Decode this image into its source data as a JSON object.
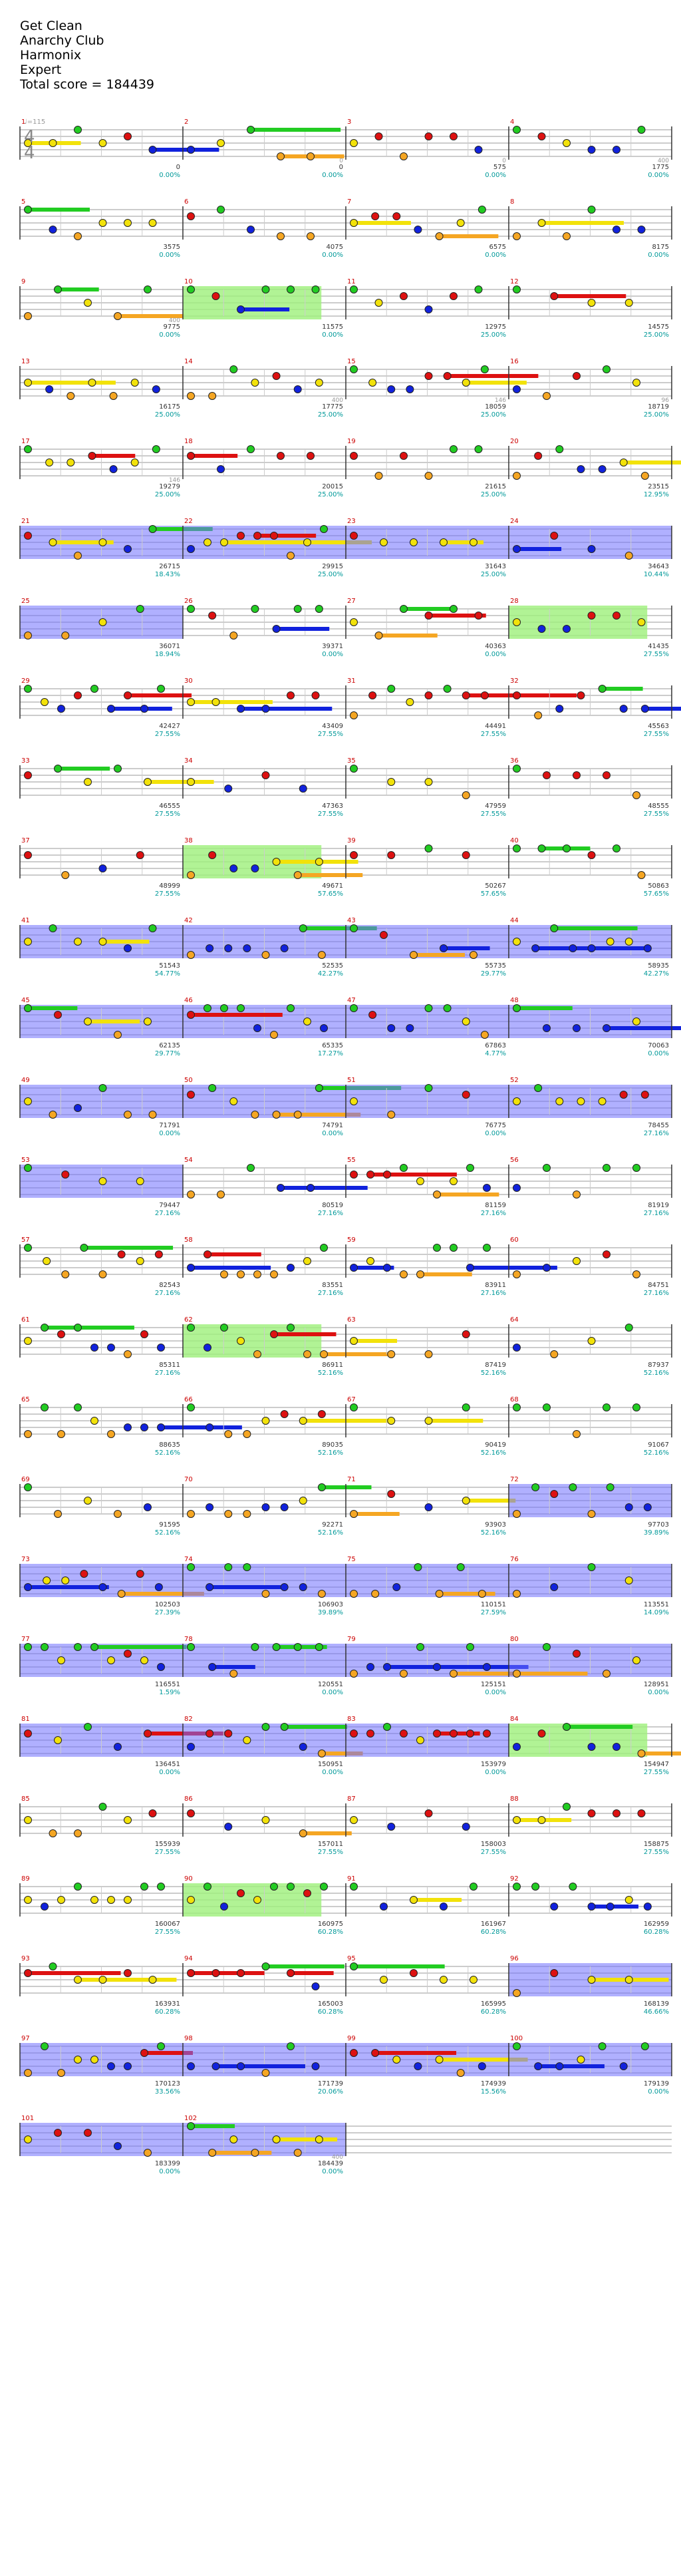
{
  "song": {
    "title": "Get Clean",
    "artist": "Anarchy Club",
    "charter": "Harmonix",
    "difficulty": "Expert",
    "total_score_label": "Total score = 184439"
  },
  "chart_header": {
    "tempo_label": "♩=115",
    "time_signature_top": "4",
    "time_signature_bottom": "4"
  },
  "colors": {
    "green": "#22cc22",
    "red": "#dd1111",
    "yellow": "#f2e20a",
    "blue": "#1122dd",
    "orange": "#f5a623",
    "starpower": "#7070ff",
    "solo": "#9ef07a",
    "percent": "#009999"
  },
  "measures": [
    {
      "n": "1",
      "prev": "",
      "score": "0",
      "pct": "0.00%"
    },
    {
      "n": "2",
      "prev": "0",
      "score": "0",
      "pct": "0.00%"
    },
    {
      "n": "3",
      "prev": "0",
      "score": "575",
      "pct": "0.00%"
    },
    {
      "n": "4",
      "prev": "400",
      "score": "1775",
      "pct": "0.00%"
    },
    {
      "n": "5",
      "prev": "",
      "score": "3575",
      "pct": "0.00%"
    },
    {
      "n": "6",
      "prev": "",
      "score": "4075",
      "pct": "0.00%"
    },
    {
      "n": "7",
      "prev": "",
      "score": "6575",
      "pct": "0.00%"
    },
    {
      "n": "8",
      "prev": "",
      "score": "8175",
      "pct": "0.00%"
    },
    {
      "n": "9",
      "prev": "400",
      "score": "9775",
      "pct": "0.00%"
    },
    {
      "n": "10",
      "prev": "",
      "score": "11575",
      "pct": "0.00%"
    },
    {
      "n": "11",
      "prev": "",
      "score": "12975",
      "pct": "25.00%"
    },
    {
      "n": "12",
      "prev": "",
      "score": "14575",
      "pct": "25.00%"
    },
    {
      "n": "13",
      "prev": "",
      "score": "16175",
      "pct": "25.00%"
    },
    {
      "n": "14",
      "prev": "400",
      "score": "17775",
      "pct": "25.00%"
    },
    {
      "n": "15",
      "prev": "146",
      "score": "18059",
      "pct": "25.00%"
    },
    {
      "n": "16",
      "prev": "96",
      "score": "18719",
      "pct": "25.00%"
    },
    {
      "n": "17",
      "prev": "146",
      "score": "19279",
      "pct": "25.00%"
    },
    {
      "n": "18",
      "prev": "",
      "score": "20015",
      "pct": "25.00%"
    },
    {
      "n": "19",
      "prev": "",
      "score": "21615",
      "pct": "25.00%"
    },
    {
      "n": "20",
      "prev": "",
      "score": "23515",
      "pct": "12.95%"
    },
    {
      "n": "21",
      "prev": "",
      "score": "26715",
      "pct": "18.43%"
    },
    {
      "n": "22",
      "prev": "",
      "score": "29915",
      "pct": "25.00%"
    },
    {
      "n": "23",
      "prev": "",
      "score": "31643",
      "pct": "25.00%"
    },
    {
      "n": "24",
      "prev": "",
      "score": "34643",
      "pct": "10.44%"
    },
    {
      "n": "25",
      "prev": "",
      "score": "36071",
      "pct": "18.94%"
    },
    {
      "n": "26",
      "prev": "",
      "score": "39371",
      "pct": "0.00%"
    },
    {
      "n": "27",
      "prev": "",
      "score": "40363",
      "pct": "0.00%"
    },
    {
      "n": "28",
      "prev": "",
      "score": "41435",
      "pct": "27.55%"
    },
    {
      "n": "29",
      "prev": "",
      "score": "42427",
      "pct": "27.55%"
    },
    {
      "n": "30",
      "prev": "",
      "score": "43409",
      "pct": "27.55%"
    },
    {
      "n": "31",
      "prev": "",
      "score": "44491",
      "pct": "27.55%"
    },
    {
      "n": "32",
      "prev": "",
      "score": "45563",
      "pct": "27.55%"
    },
    {
      "n": "33",
      "prev": "",
      "score": "46555",
      "pct": "27.55%"
    },
    {
      "n": "34",
      "prev": "",
      "score": "47363",
      "pct": "27.55%"
    },
    {
      "n": "35",
      "prev": "",
      "score": "47959",
      "pct": "27.55%"
    },
    {
      "n": "36",
      "prev": "",
      "score": "48555",
      "pct": "27.55%"
    },
    {
      "n": "37",
      "prev": "",
      "score": "48999",
      "pct": "27.55%"
    },
    {
      "n": "38",
      "prev": "",
      "score": "49671",
      "pct": "57.65%"
    },
    {
      "n": "39",
      "prev": "",
      "score": "50267",
      "pct": "57.65%"
    },
    {
      "n": "40",
      "prev": "",
      "score": "50863",
      "pct": "57.65%"
    },
    {
      "n": "41",
      "prev": "",
      "score": "51543",
      "pct": "54.77%"
    },
    {
      "n": "42",
      "prev": "",
      "score": "52535",
      "pct": "42.27%"
    },
    {
      "n": "43",
      "prev": "",
      "score": "55735",
      "pct": "29.77%"
    },
    {
      "n": "44",
      "prev": "",
      "score": "58935",
      "pct": "42.27%"
    },
    {
      "n": "45",
      "prev": "",
      "score": "62135",
      "pct": "29.77%"
    },
    {
      "n": "46",
      "prev": "",
      "score": "65335",
      "pct": "17.27%"
    },
    {
      "n": "47",
      "prev": "",
      "score": "67863",
      "pct": "4.77%"
    },
    {
      "n": "48",
      "prev": "",
      "score": "70063",
      "pct": "0.00%"
    },
    {
      "n": "49",
      "prev": "",
      "score": "71791",
      "pct": "0.00%"
    },
    {
      "n": "50",
      "prev": "",
      "score": "74791",
      "pct": "0.00%"
    },
    {
      "n": "51",
      "prev": "",
      "score": "76775",
      "pct": "0.00%"
    },
    {
      "n": "52",
      "prev": "",
      "score": "78455",
      "pct": "27.16%"
    },
    {
      "n": "53",
      "prev": "",
      "score": "79447",
      "pct": "27.16%"
    },
    {
      "n": "54",
      "prev": "",
      "score": "80519",
      "pct": "27.16%"
    },
    {
      "n": "55",
      "prev": "",
      "score": "81159",
      "pct": "27.16%"
    },
    {
      "n": "56",
      "prev": "",
      "score": "81919",
      "pct": "27.16%"
    },
    {
      "n": "57",
      "prev": "",
      "score": "82543",
      "pct": "27.16%"
    },
    {
      "n": "58",
      "prev": "",
      "score": "83551",
      "pct": "27.16%"
    },
    {
      "n": "59",
      "prev": "",
      "score": "83911",
      "pct": "27.16%"
    },
    {
      "n": "60",
      "prev": "",
      "score": "84751",
      "pct": "27.16%"
    },
    {
      "n": "61",
      "prev": "",
      "score": "85311",
      "pct": "27.16%"
    },
    {
      "n": "62",
      "prev": "",
      "score": "86911",
      "pct": "52.16%"
    },
    {
      "n": "63",
      "prev": "",
      "score": "87419",
      "pct": "52.16%"
    },
    {
      "n": "64",
      "prev": "",
      "score": "87937",
      "pct": "52.16%"
    },
    {
      "n": "65",
      "prev": "",
      "score": "88635",
      "pct": "52.16%"
    },
    {
      "n": "66",
      "prev": "",
      "score": "89035",
      "pct": "52.16%"
    },
    {
      "n": "67",
      "prev": "",
      "score": "90419",
      "pct": "52.16%"
    },
    {
      "n": "68",
      "prev": "",
      "score": "91067",
      "pct": "52.16%"
    },
    {
      "n": "69",
      "prev": "",
      "score": "91595",
      "pct": "52.16%"
    },
    {
      "n": "70",
      "prev": "",
      "score": "92271",
      "pct": "52.16%"
    },
    {
      "n": "71",
      "prev": "",
      "score": "93903",
      "pct": "52.16%"
    },
    {
      "n": "72",
      "prev": "",
      "score": "97703",
      "pct": "39.89%"
    },
    {
      "n": "73",
      "prev": "",
      "score": "102503",
      "pct": "27.39%"
    },
    {
      "n": "74",
      "prev": "",
      "score": "106903",
      "pct": "39.89%"
    },
    {
      "n": "75",
      "prev": "",
      "score": "110151",
      "pct": "27.59%"
    },
    {
      "n": "76",
      "prev": "",
      "score": "113551",
      "pct": "14.09%"
    },
    {
      "n": "77",
      "prev": "",
      "score": "116551",
      "pct": "1.59%"
    },
    {
      "n": "78",
      "prev": "",
      "score": "120551",
      "pct": "0.00%"
    },
    {
      "n": "79",
      "prev": "",
      "score": "125151",
      "pct": "0.00%"
    },
    {
      "n": "80",
      "prev": "",
      "score": "128951",
      "pct": "0.00%"
    },
    {
      "n": "81",
      "prev": "",
      "score": "136451",
      "pct": "0.00%"
    },
    {
      "n": "82",
      "prev": "",
      "score": "150951",
      "pct": "0.00%"
    },
    {
      "n": "83",
      "prev": "",
      "score": "153979",
      "pct": "0.00%"
    },
    {
      "n": "84",
      "prev": "",
      "score": "154947",
      "pct": "27.55%"
    },
    {
      "n": "85",
      "prev": "",
      "score": "155939",
      "pct": "27.55%"
    },
    {
      "n": "86",
      "prev": "",
      "score": "157011",
      "pct": "27.55%"
    },
    {
      "n": "87",
      "prev": "",
      "score": "158003",
      "pct": "27.55%"
    },
    {
      "n": "88",
      "prev": "",
      "score": "158875",
      "pct": "27.55%"
    },
    {
      "n": "89",
      "prev": "",
      "score": "160067",
      "pct": "27.55%"
    },
    {
      "n": "90",
      "prev": "",
      "score": "160975",
      "pct": "60.28%"
    },
    {
      "n": "91",
      "prev": "",
      "score": "161967",
      "pct": "60.28%"
    },
    {
      "n": "92",
      "prev": "",
      "score": "162959",
      "pct": "60.28%"
    },
    {
      "n": "93",
      "prev": "",
      "score": "163931",
      "pct": "60.28%"
    },
    {
      "n": "94",
      "prev": "",
      "score": "165003",
      "pct": "60.28%"
    },
    {
      "n": "95",
      "prev": "",
      "score": "165995",
      "pct": "60.28%"
    },
    {
      "n": "96",
      "prev": "",
      "score": "168139",
      "pct": "46.66%"
    },
    {
      "n": "97",
      "prev": "",
      "score": "170123",
      "pct": "33.56%"
    },
    {
      "n": "98",
      "prev": "",
      "score": "171739",
      "pct": "20.06%"
    },
    {
      "n": "99",
      "prev": "",
      "score": "174939",
      "pct": "15.56%"
    },
    {
      "n": "100",
      "prev": "",
      "score": "179139",
      "pct": "0.00%"
    },
    {
      "n": "101",
      "prev": "",
      "score": "183399",
      "pct": "0.00%"
    },
    {
      "n": "102",
      "prev": "400",
      "score": "184439",
      "pct": "0.00%"
    }
  ]
}
